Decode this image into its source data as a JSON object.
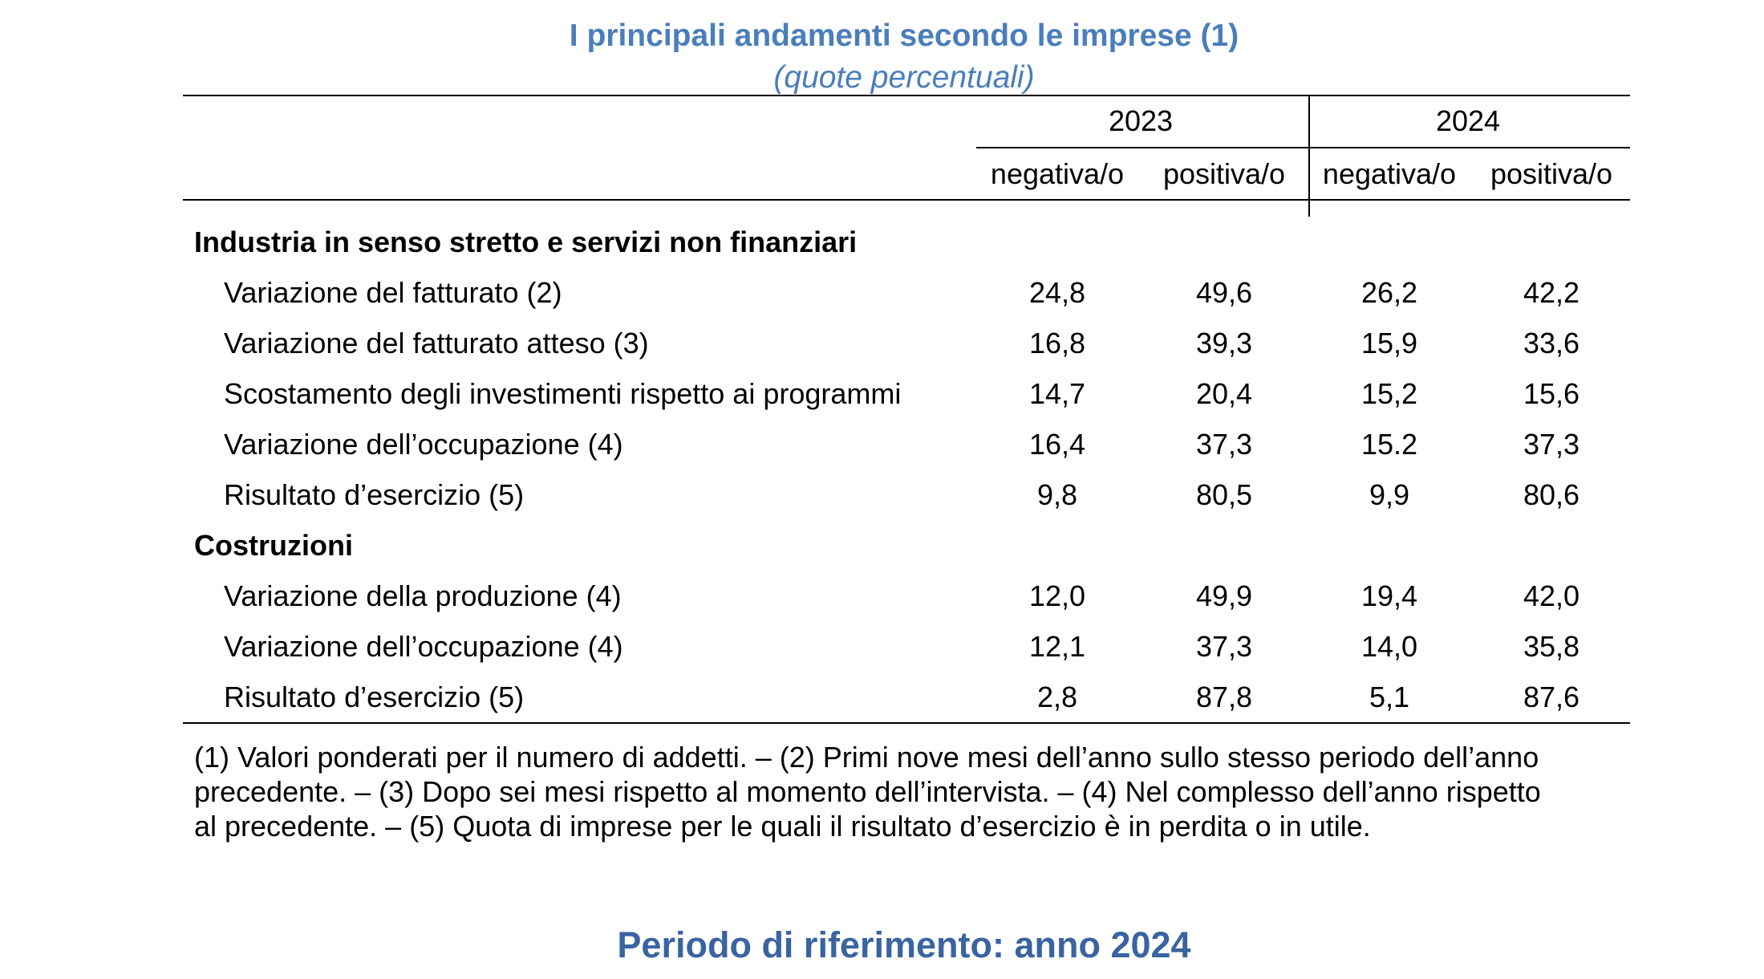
{
  "header": {
    "title": "I principali andamenti secondo le imprese (1)",
    "subtitle": "(quote percentuali)"
  },
  "table": {
    "years": [
      "2023",
      "2024"
    ],
    "subcolumns": [
      "negativa/o",
      "positiva/o",
      "negativa/o",
      "positiva/o"
    ],
    "sections": [
      {
        "label": "Industria in senso stretto e servizi non finanziari",
        "rows": [
          {
            "label": "Variazione del fatturato (2)",
            "values": [
              "24,8",
              "49,6",
              "26,2",
              "42,2"
            ]
          },
          {
            "label": "Variazione del fatturato atteso (3)",
            "values": [
              "16,8",
              "39,3",
              "15,9",
              "33,6"
            ]
          },
          {
            "label": "Scostamento degli investimenti rispetto ai programmi",
            "values": [
              "14,7",
              "20,4",
              "15,2",
              "15,6"
            ]
          },
          {
            "label": "Variazione dell’occupazione (4)",
            "values": [
              "16,4",
              "37,3",
              "15.2",
              "37,3"
            ]
          },
          {
            "label": "Risultato d’esercizio (5)",
            "values": [
              "9,8",
              "80,5",
              "9,9",
              "80,6"
            ]
          }
        ]
      },
      {
        "label": "Costruzioni",
        "rows": [
          {
            "label": "Variazione della produzione (4)",
            "values": [
              "12,0",
              "49,9",
              "19,4",
              "42,0"
            ]
          },
          {
            "label": "Variazione dell’occupazione (4)",
            "values": [
              "12,1",
              "37,3",
              "14,0",
              "35,8"
            ]
          },
          {
            "label": "Risultato d’esercizio (5)",
            "values": [
              "2,8",
              "87,8",
              "5,1",
              "87,6"
            ]
          }
        ]
      }
    ]
  },
  "footnotes": {
    "line1": "(1) Valori ponderati per il numero di addetti. – (2) Primi nove mesi dell’anno sullo stesso periodo dell’anno",
    "line2": "precedente. – (3) Dopo sei mesi rispetto al momento dell’intervista. – (4) Nel complesso dell’anno rispetto",
    "line3": "al precedente. – (5) Quota di imprese per le quali il risultato d’esercizio è in perdita o in utile."
  },
  "period": "Periodo di riferimento: anno 2024"
}
